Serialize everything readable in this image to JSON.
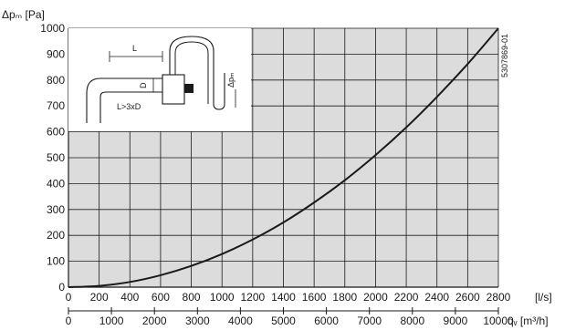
{
  "chart_data": {
    "type": "line",
    "title": "",
    "ylabel": "Δpₘ [Pa]",
    "xlabel": "[l/s]",
    "xlabel_bold_part": "l",
    "x2label": "qᵥ [m³/h]",
    "xlim": [
      0,
      2800
    ],
    "ylim": [
      0,
      1000
    ],
    "x_ticks": [
      "0",
      "200",
      "400",
      "600",
      "800",
      "1000",
      "1200",
      "1400",
      "1600",
      "1800",
      "2000",
      "2200",
      "2400",
      "2600",
      "2800"
    ],
    "y_ticks": [
      "0",
      "100",
      "200",
      "300",
      "400",
      "500",
      "600",
      "700",
      "800",
      "900",
      "1000"
    ],
    "x2lim": [
      0,
      10000
    ],
    "x2_ticks": [
      "0",
      "1000",
      "2000",
      "3000",
      "4000",
      "5000",
      "6000",
      "7000",
      "8000",
      "9000",
      "10000"
    ],
    "grid": true,
    "background_color": "#dcdcdc",
    "series": [
      {
        "x": [
          0,
          200,
          400,
          600,
          800,
          1000,
          1200,
          1400,
          1600,
          1800,
          2000,
          2200,
          2400,
          2600,
          2800
        ],
        "y": [
          0,
          5,
          20,
          46,
          82,
          128,
          184,
          250,
          327,
          413,
          510,
          617,
          735,
          862,
          1000
        ],
        "color": "#1a1a1a"
      }
    ],
    "code": "5307869-01",
    "inset": {
      "labels": {
        "length": "L",
        "diameter": "D",
        "rule": "L>3xD",
        "pressure": "Δpₘ"
      }
    }
  }
}
